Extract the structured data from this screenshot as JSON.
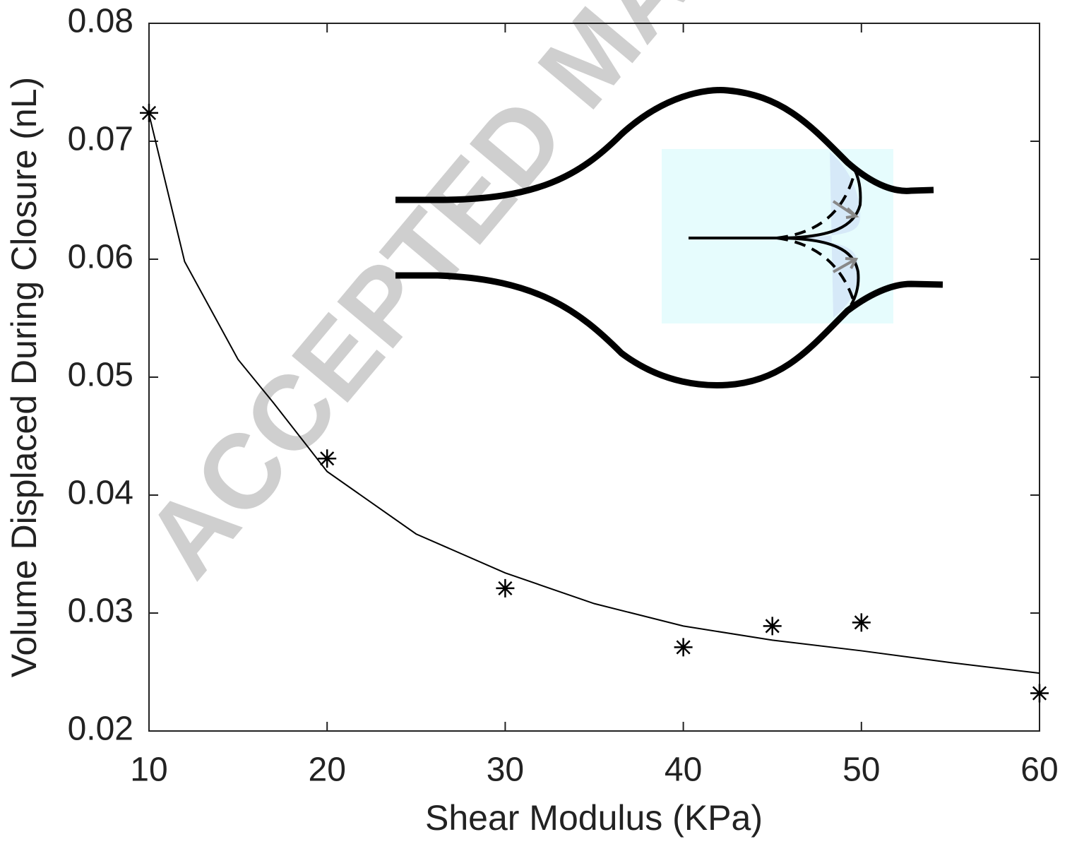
{
  "chart_data": {
    "type": "scatter",
    "xlabel": "Shear Modulus (KPa)",
    "ylabel": "Volume Displaced During Closure (nL)",
    "watermark": "ACCEPTED MA",
    "points": {
      "x": [
        10,
        20,
        30,
        40,
        45,
        50,
        60
      ],
      "y": [
        0.0724,
        0.0431,
        0.0321,
        0.0271,
        0.0289,
        0.0292,
        0.0232
      ],
      "color": "#000000"
    },
    "fit": {
      "x": [
        10,
        12,
        15,
        17,
        20,
        25,
        30,
        35,
        40,
        45,
        50,
        55,
        60
      ],
      "y": [
        0.0723,
        0.0598,
        0.0515,
        0.0478,
        0.042,
        0.0367,
        0.0334,
        0.0308,
        0.0289,
        0.0277,
        0.0268,
        0.0258,
        0.0249
      ],
      "color": "#000000"
    },
    "xlim": [
      10,
      60
    ],
    "ylim": [
      0.02,
      0.08
    ],
    "xticks": [
      10,
      20,
      30,
      40,
      50,
      60
    ],
    "yticks": [
      0.02,
      0.03,
      0.04,
      0.05,
      0.06,
      0.07,
      0.08
    ]
  }
}
